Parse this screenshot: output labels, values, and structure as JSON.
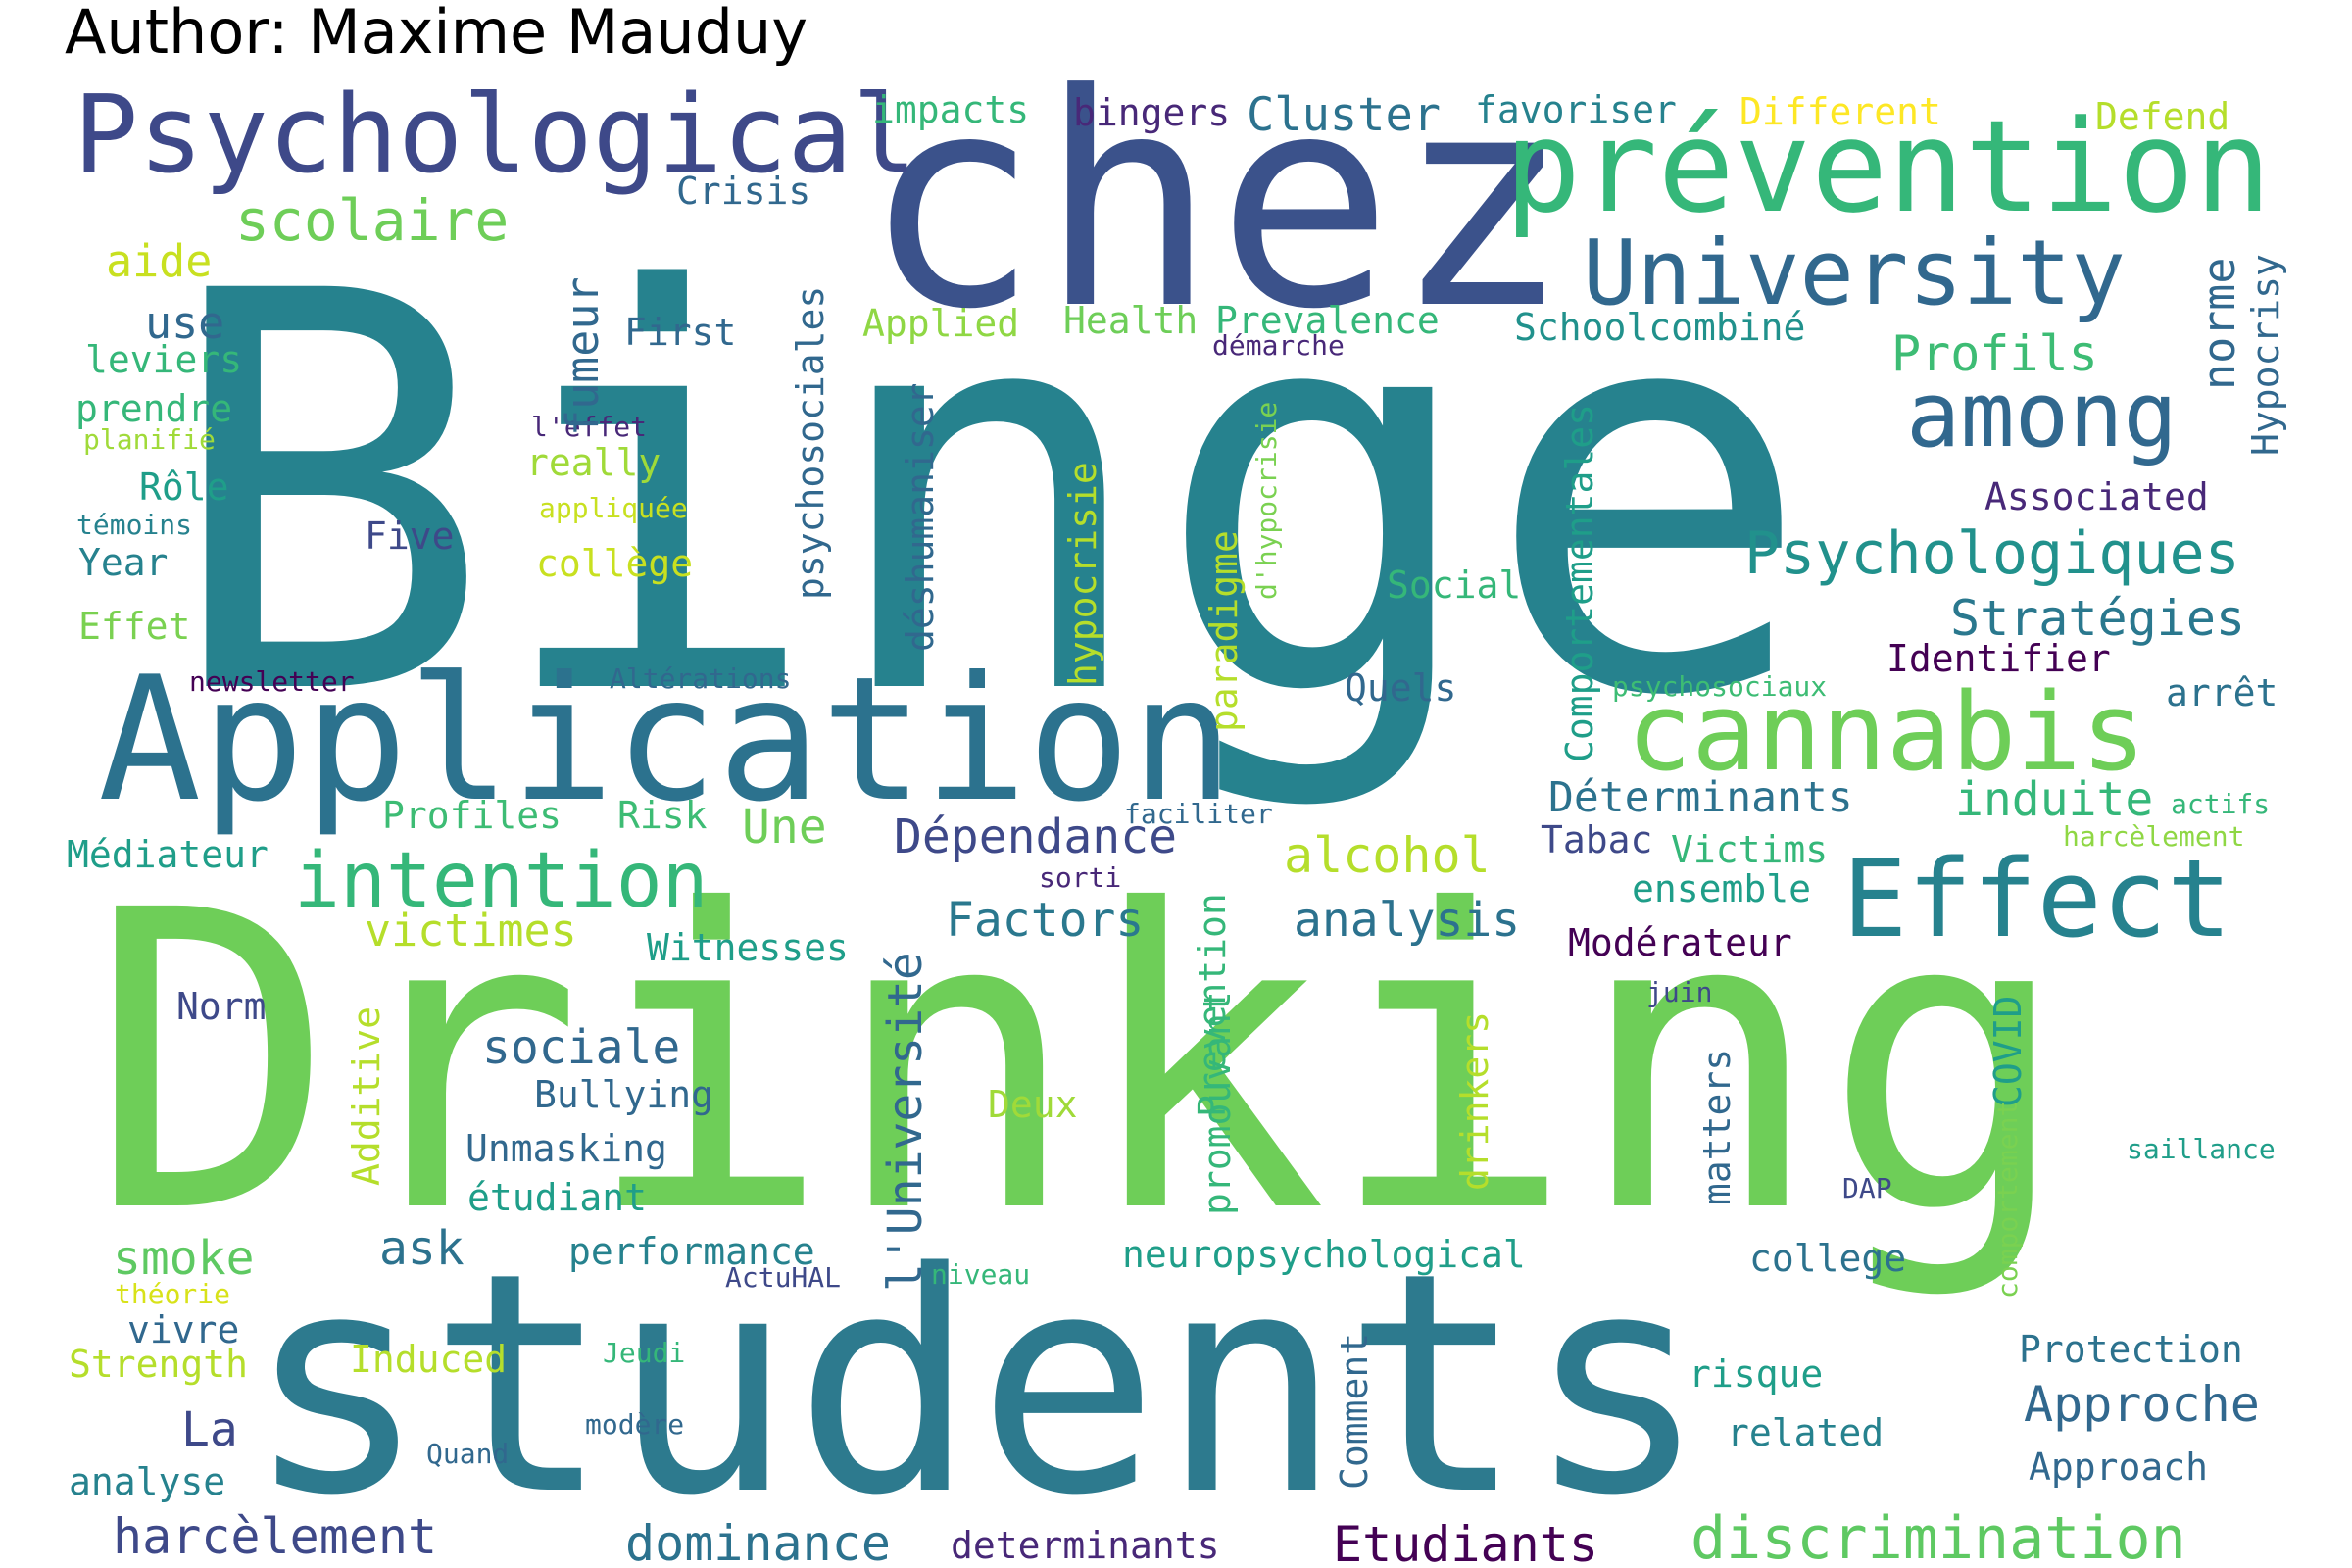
{
  "header": {
    "author_label": "Author: Maxime Mauduy"
  },
  "palette": [
    "#440154",
    "#482878",
    "#3e4989",
    "#31688e",
    "#26828e",
    "#1f9e89",
    "#35b779",
    "#6ece58",
    "#b5de2b",
    "#fde725"
  ],
  "words": [
    {
      "text": "Binge",
      "color": "#26828e"
    },
    {
      "text": "Drinking",
      "color": "#6ece58"
    },
    {
      "text": "students",
      "color": "#2d7a8e"
    },
    {
      "text": "chez",
      "color": "#3b528b"
    },
    {
      "text": "Application",
      "color": "#2c728e"
    },
    {
      "text": "Psychological",
      "color": "#3e4989"
    },
    {
      "text": "prévention",
      "color": "#35b779"
    },
    {
      "text": "University",
      "color": "#31688e"
    },
    {
      "text": "among",
      "color": "#31688e"
    },
    {
      "text": "cannabis",
      "color": "#6ece58"
    },
    {
      "text": "Effect",
      "color": "#26828e"
    },
    {
      "text": "intention",
      "color": "#35b779"
    },
    {
      "text": "Psychologiques",
      "color": "#21918c"
    },
    {
      "text": "discrimination",
      "color": "#5ec962"
    },
    {
      "text": "dominance",
      "color": "#2c728e"
    },
    {
      "text": "harcèlement",
      "color": "#3e4989"
    },
    {
      "text": "Etudiants",
      "color": "#440154"
    },
    {
      "text": "Approche",
      "color": "#31688e"
    },
    {
      "text": "Stratégies",
      "color": "#2a788e"
    },
    {
      "text": "Déterminants",
      "color": "#2c728e"
    },
    {
      "text": "induite",
      "color": "#35b779"
    },
    {
      "text": "Dépendance",
      "color": "#3e4989"
    },
    {
      "text": "Factors",
      "color": "#2a788e"
    },
    {
      "text": "alcohol",
      "color": "#b5de2b"
    },
    {
      "text": "analysis",
      "color": "#2c728e"
    },
    {
      "text": "victimes",
      "color": "#b5de2b"
    },
    {
      "text": "sociale",
      "color": "#31688e"
    },
    {
      "text": "scolaire",
      "color": "#6ece58"
    },
    {
      "text": "Profils",
      "color": "#3dbc74"
    },
    {
      "text": "Cluster",
      "color": "#2c728e"
    },
    {
      "text": "Une",
      "color": "#6ece58"
    },
    {
      "text": "smoke",
      "color": "#5ec962"
    },
    {
      "text": "ask",
      "color": "#2c728e"
    },
    {
      "text": "La",
      "color": "#3e4989"
    },
    {
      "text": "neuropsychological",
      "color": "#1f9e89"
    },
    {
      "text": "college",
      "color": "#2c728e"
    },
    {
      "text": "Protection",
      "color": "#2c728e"
    },
    {
      "text": "Approach",
      "color": "#31688e"
    },
    {
      "text": "related",
      "color": "#26828e"
    },
    {
      "text": "risque",
      "color": "#1f9e89"
    },
    {
      "text": "determinants",
      "color": "#482878"
    },
    {
      "text": "analyse",
      "color": "#26828e"
    },
    {
      "text": "Strength",
      "color": "#b5de2b"
    },
    {
      "text": "vivre",
      "color": "#31688e"
    },
    {
      "text": "Induced",
      "color": "#b5de2b"
    },
    {
      "text": "performance",
      "color": "#26828e"
    },
    {
      "text": "étudiant",
      "color": "#1f9e89"
    },
    {
      "text": "Unmasking",
      "color": "#31688e"
    },
    {
      "text": "Bullying",
      "color": "#31688e"
    },
    {
      "text": "Deux",
      "color": "#a0da39"
    },
    {
      "text": "Norm",
      "color": "#3e4989"
    },
    {
      "text": "Witnesses",
      "color": "#1f9e89"
    },
    {
      "text": "Profiles",
      "color": "#3dbc74"
    },
    {
      "text": "Risk",
      "color": "#3dbc74"
    },
    {
      "text": "Médiateur",
      "color": "#1f9e89"
    },
    {
      "text": "Victims",
      "color": "#35b779"
    },
    {
      "text": "ensemble",
      "color": "#1f9e89"
    },
    {
      "text": "Modérateur",
      "color": "#440154"
    },
    {
      "text": "Tabac",
      "color": "#3e4989"
    },
    {
      "text": "Identifier",
      "color": "#440154"
    },
    {
      "text": "arrêt",
      "color": "#2c728e"
    },
    {
      "text": "Associated",
      "color": "#482878"
    },
    {
      "text": "Social",
      "color": "#35b779"
    },
    {
      "text": "Quels",
      "color": "#31688e"
    },
    {
      "text": "Health",
      "color": "#6ece58"
    },
    {
      "text": "Prevalence",
      "color": "#35b779"
    },
    {
      "text": "Applied",
      "color": "#8fd744"
    },
    {
      "text": "First",
      "color": "#31688e"
    },
    {
      "text": "Schoolcombiné",
      "color": "#21918c"
    },
    {
      "text": "démarche",
      "color": "#482878"
    },
    {
      "text": "favoriser",
      "color": "#26828e"
    },
    {
      "text": "Different",
      "color": "#fde725"
    },
    {
      "text": "Defend",
      "color": "#b5de2b"
    },
    {
      "text": "bingers",
      "color": "#482878"
    },
    {
      "text": "impacts",
      "color": "#35b779"
    },
    {
      "text": "Crisis",
      "color": "#31688e"
    },
    {
      "text": "aide",
      "color": "#c8e020"
    },
    {
      "text": "use",
      "color": "#31688e"
    },
    {
      "text": "leviers",
      "color": "#35b779"
    },
    {
      "text": "prendre",
      "color": "#35b779"
    },
    {
      "text": "planifié",
      "color": "#a0da39"
    },
    {
      "text": "Rôle",
      "color": "#1f9e89"
    },
    {
      "text": "témoins",
      "color": "#26828e"
    },
    {
      "text": "Year",
      "color": "#26828e"
    },
    {
      "text": "Effet",
      "color": "#7ad151"
    },
    {
      "text": "newsletter",
      "color": "#440154"
    },
    {
      "text": "Altérations",
      "color": "#31688e"
    },
    {
      "text": "Five",
      "color": "#3e4989"
    },
    {
      "text": "really",
      "color": "#a0da39"
    },
    {
      "text": "l'effet",
      "color": "#482878"
    },
    {
      "text": "appliquée",
      "color": "#c8e020"
    },
    {
      "text": "collège",
      "color": "#c8e020"
    },
    {
      "text": "psychosociaux",
      "color": "#3dbc74"
    },
    {
      "text": "faciliter",
      "color": "#31688e"
    },
    {
      "text": "sorti",
      "color": "#482878"
    },
    {
      "text": "actifs",
      "color": "#35b779"
    },
    {
      "text": "harcèlement",
      "color": "#8fd744"
    },
    {
      "text": "juin",
      "color": "#3e4989"
    },
    {
      "text": "saillance",
      "color": "#1f9e89"
    },
    {
      "text": "DAP",
      "color": "#3e4989"
    },
    {
      "text": "niveau",
      "color": "#35b779"
    },
    {
      "text": "ActuHAL",
      "color": "#3e4989"
    },
    {
      "text": "théorie",
      "color": "#d8e219"
    },
    {
      "text": "Jeudi",
      "color": "#35b779"
    },
    {
      "text": "modère",
      "color": "#31688e"
    },
    {
      "text": "Quand",
      "color": "#31688e"
    },
    {
      "text": "fumeur",
      "color": "#31688e"
    },
    {
      "text": "psychosociales",
      "color": "#31688e"
    },
    {
      "text": "déshumaniser",
      "color": "#31688e"
    },
    {
      "text": "hypocrisie",
      "color": "#b5de2b"
    },
    {
      "text": "paradigme",
      "color": "#b5de2b"
    },
    {
      "text": "d'hypocrisie",
      "color": "#7ad151"
    },
    {
      "text": "Comportementales",
      "color": "#1f9e89"
    },
    {
      "text": "norme",
      "color": "#31688e"
    },
    {
      "text": "Hypocrisy",
      "color": "#31688e"
    },
    {
      "text": "l'Université",
      "color": "#31688e"
    },
    {
      "text": "Additive",
      "color": "#b5de2b"
    },
    {
      "text": "promouvant",
      "color": "#35b779"
    },
    {
      "text": "Prevention",
      "color": "#35b779"
    },
    {
      "text": "drinkers",
      "color": "#b5de2b"
    },
    {
      "text": "matters",
      "color": "#31688e"
    },
    {
      "text": "COVID",
      "color": "#1f9e89"
    },
    {
      "text": "comportement",
      "color": "#7ad151"
    },
    {
      "text": "Comment",
      "color": "#31688e"
    }
  ]
}
